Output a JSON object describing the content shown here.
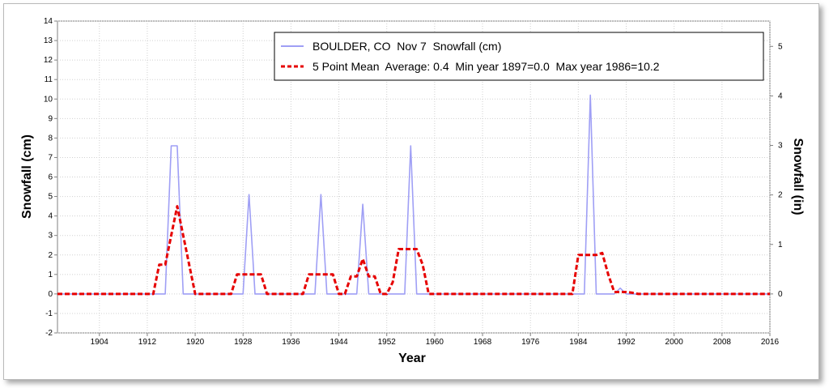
{
  "chart_data": {
    "type": "line",
    "xlabel": "Year",
    "ylabel": "Snowfall (cm)",
    "ylabel_right": "Snowfall (in)",
    "xlim": [
      1897,
      2016
    ],
    "ylim": [
      -2,
      14
    ],
    "ylim_right_in": [
      -0.787,
      5.512
    ],
    "x_ticks": [
      1904,
      1912,
      1920,
      1928,
      1936,
      1944,
      1952,
      1960,
      1968,
      1976,
      1984,
      1992,
      2000,
      2008,
      2016
    ],
    "y_ticks": [
      -2,
      -1,
      0,
      1,
      2,
      3,
      4,
      5,
      6,
      7,
      8,
      9,
      10,
      11,
      12,
      13,
      14
    ],
    "y_ticks_right": [
      0,
      1,
      2,
      3,
      4,
      5
    ],
    "grid": true,
    "legend_position": "top-right",
    "series": [
      {
        "name": "BOULDER, CO  Nov 7  Snowfall (cm)",
        "color": "#9f9ff5",
        "style": "solid",
        "x": [
          1897,
          1915,
          1916,
          1917,
          1918,
          1928,
          1929,
          1930,
          1940,
          1941,
          1942,
          1947,
          1948,
          1949,
          1955,
          1956,
          1957,
          1985,
          1986,
          1987,
          1990,
          1991,
          1992,
          2016
        ],
        "y": [
          0,
          0,
          7.6,
          7.6,
          0,
          0,
          5.1,
          0,
          0,
          5.1,
          0,
          0,
          4.6,
          0,
          0,
          7.6,
          0,
          0,
          10.2,
          0,
          0,
          0.3,
          0,
          0
        ]
      },
      {
        "name": "5 Point Mean  Average: 0.4  Min year 1897=0.0  Max year 1986=10.2",
        "color": "#e60000",
        "style": "dashed",
        "x": [
          1897,
          1913,
          1914,
          1915,
          1916,
          1917,
          1918,
          1919,
          1920,
          1926,
          1927,
          1928,
          1929,
          1930,
          1931,
          1932,
          1938,
          1939,
          1940,
          1941,
          1942,
          1943,
          1944,
          1945,
          1946,
          1947,
          1948,
          1949,
          1950,
          1951,
          1952,
          1953,
          1954,
          1955,
          1956,
          1957,
          1958,
          1959,
          1983,
          1984,
          1985,
          1986,
          1987,
          1988,
          1989,
          1990,
          1991,
          1992,
          1993,
          1994,
          2016
        ],
        "y": [
          0,
          0,
          1.5,
          1.5,
          3.0,
          4.5,
          3.0,
          1.5,
          0,
          0,
          1.0,
          1.0,
          1.0,
          1.0,
          1.0,
          0,
          0,
          1.0,
          1.0,
          1.0,
          1.0,
          1.0,
          0,
          0,
          0.9,
          0.9,
          1.8,
          0.9,
          0.9,
          0,
          0,
          0.6,
          2.3,
          2.3,
          2.3,
          2.3,
          1.5,
          0,
          0,
          2.0,
          2.0,
          2.0,
          2.0,
          2.1,
          1.0,
          0.1,
          0.1,
          0.1,
          0.06,
          0,
          0
        ]
      }
    ]
  }
}
